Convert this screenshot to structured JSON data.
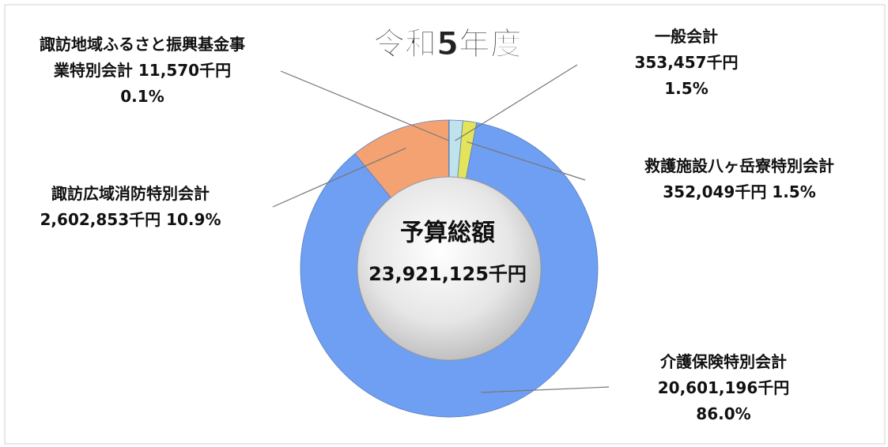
{
  "chart_data": {
    "type": "pie",
    "title": "令和5年度",
    "center_label": "予算総額",
    "center_value": "23,921,125千円",
    "categories": [
      "一般会計",
      "救護施設八ヶ岳寮特別会計",
      "介護保険特別会計",
      "諏訪広域消防特別会計",
      "諏訪地域ふるさと振興基金事業特別会計"
    ],
    "values": [
      353457,
      352049,
      20601196,
      2602853,
      11570
    ],
    "value_labels": [
      "353,457千円",
      "352,049千円",
      "20,601,196千円",
      "2,602,853千円",
      "11,570千円"
    ],
    "percents": [
      1.5,
      1.5,
      86.0,
      10.9,
      0.1
    ],
    "percent_labels": [
      "1.5%",
      "1.5%",
      "86.0%",
      "10.9%",
      "0.1%"
    ],
    "colors": [
      "#bfe3ec",
      "#e4e45a",
      "#6f9ff2",
      "#f5a273",
      "#9fd39a"
    ]
  }
}
